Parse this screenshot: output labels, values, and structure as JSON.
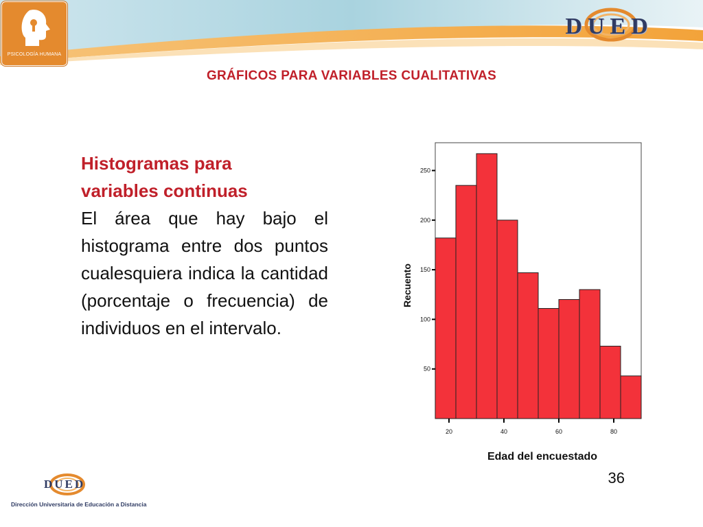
{
  "header": {
    "logo_caption": "PSICOLOGÍA HUMANA",
    "brand": "DUED"
  },
  "slide": {
    "title": "GRÁFICOS PARA VARIABLES CUALITATIVAS",
    "heading_line1": "Histogramas para",
    "heading_line2": "variables continuas",
    "paragraph": "El área que hay bajo el histograma entre dos puntos cualesquiera indica la cantidad (porcentaje o frecuencia) de individuos en el intervalo.",
    "page_number": "36"
  },
  "footer": {
    "brand": "DUED",
    "caption": "Dirección Universitaria de Educación a Distancia"
  },
  "colors": {
    "title_red": "#c0202a",
    "bar_fill": "#f3323a",
    "dued_blue": "#2f3b63",
    "accent_orange": "#e48a2e"
  },
  "chart_data": {
    "type": "bar",
    "bin_edges": [
      15,
      22.5,
      30,
      37.5,
      45,
      52.5,
      60,
      67.5,
      75,
      82.5,
      90
    ],
    "values": [
      182,
      235,
      267,
      200,
      147,
      111,
      120,
      130,
      73,
      43
    ],
    "xlabel": "Edad del encuestado",
    "ylabel": "Recuento",
    "x_ticks": [
      20,
      40,
      60,
      80
    ],
    "y_ticks": [
      50,
      100,
      150,
      200,
      250
    ],
    "xlim": [
      15,
      90
    ],
    "ylim": [
      0,
      278
    ],
    "grid": false
  }
}
